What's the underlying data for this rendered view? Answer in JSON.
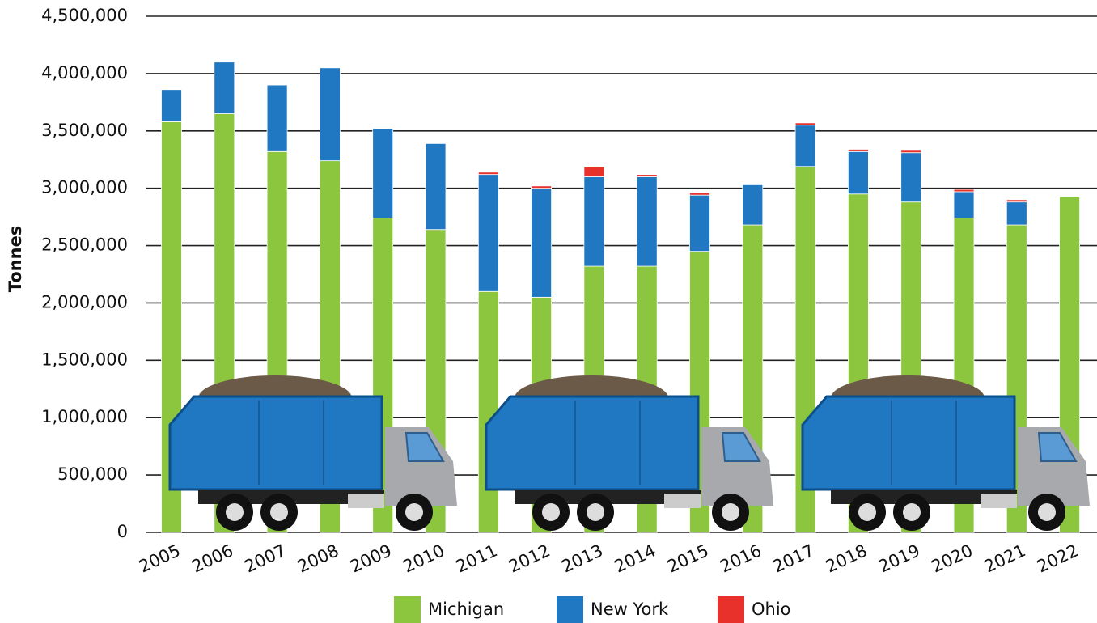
{
  "chart_data": {
    "type": "stacked-bar",
    "y_label": "Tonnes",
    "categories": [
      "2005",
      "2006",
      "2007",
      "2008",
      "2009",
      "2010",
      "2011",
      "2012",
      "2013",
      "2014",
      "2015",
      "2016",
      "2017",
      "2018",
      "2019",
      "2020",
      "2021",
      "2022"
    ],
    "series": [
      {
        "name": "Michigan",
        "color": "#8cc63f",
        "values": [
          3580000,
          3650000,
          3320000,
          3240000,
          2740000,
          2640000,
          2100000,
          2050000,
          2320000,
          2320000,
          2450000,
          2680000,
          3190000,
          2950000,
          2880000,
          2740000,
          2680000,
          2930000
        ]
      },
      {
        "name": "New York",
        "color": "#1f78c1",
        "values": [
          280000,
          450000,
          580000,
          810000,
          780000,
          750000,
          1020000,
          950000,
          780000,
          780000,
          490000,
          350000,
          360000,
          370000,
          430000,
          230000,
          200000,
          0
        ]
      },
      {
        "name": "Ohio",
        "color": "#e8312a",
        "values": [
          0,
          0,
          0,
          0,
          0,
          0,
          20000,
          20000,
          90000,
          20000,
          20000,
          0,
          20000,
          20000,
          20000,
          20000,
          20000,
          0
        ]
      }
    ],
    "ylim": [
      0,
      4500000
    ],
    "yticks": [
      0,
      {
        "value": 500000,
        "label": "500,000"
      },
      {
        "value": 1000000,
        "label": "1,000,000"
      },
      {
        "value": 1500000,
        "label": "1,500,000"
      },
      {
        "value": 2000000,
        "label": "2,000,000"
      },
      {
        "value": 2500000,
        "label": "2,500,000"
      },
      {
        "value": 3000000,
        "label": "3,000,000"
      },
      {
        "value": 3500000,
        "label": "3,500,000"
      },
      {
        "value": 4000000,
        "label": "4,000,000"
      },
      {
        "value": 4500000,
        "label": "4,500,000"
      }
    ],
    "grid": true
  }
}
